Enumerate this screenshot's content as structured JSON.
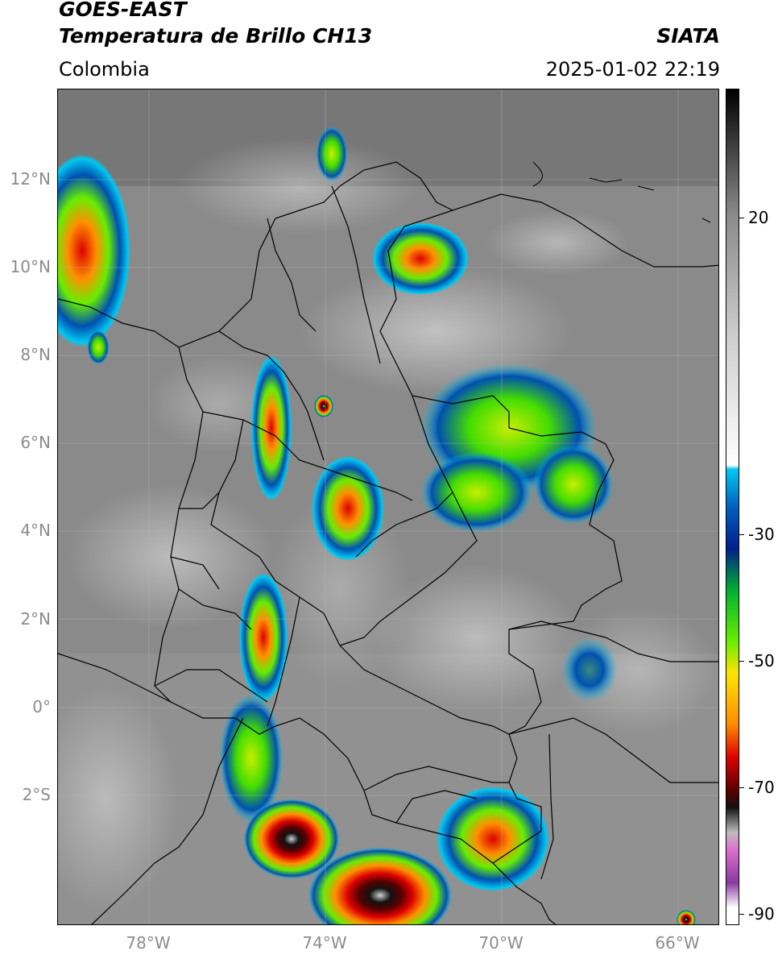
{
  "header": {
    "title_line1": "GOES-EAST",
    "title_line2": "Temperatura de Brillo CH13",
    "brand": "SIATA",
    "region": "Colombia",
    "timestamp": "2025-01-02 22:19"
  },
  "map": {
    "lat_labels": [
      "12°N",
      "10°N",
      "8°N",
      "6°N",
      "4°N",
      "2°N",
      "0°",
      "2°S"
    ],
    "lon_labels": [
      "78°W",
      "74°W",
      "70°W",
      "66°W"
    ],
    "background_color": "#8a8a8a",
    "border_color": "#000000"
  },
  "colorbar": {
    "tick_labels": [
      "20",
      "-30",
      "-50",
      "-70",
      "-90"
    ],
    "colors": [
      "#000000",
      "#4a4a4a",
      "#8a8a8a",
      "#cfcfcf",
      "#ffffff",
      "#00c8f0",
      "#0060c0",
      "#00208a",
      "#00b030",
      "#66ee00",
      "#ffe400",
      "#ff8c00",
      "#dd0000",
      "#5a0000",
      "#111111",
      "#bdbdbd",
      "#e070d0",
      "#8a3aa0",
      "#ffffff"
    ]
  }
}
